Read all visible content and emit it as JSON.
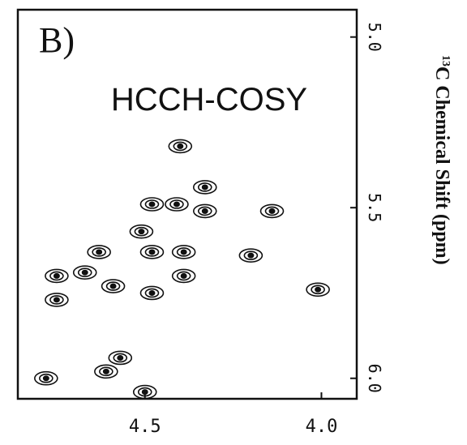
{
  "chart_data": {
    "type": "scatter",
    "panel_label": "B)",
    "title": "HCCH-COSY",
    "y_label_sup": "13",
    "y_label": "C Chemical Shift  (ppm)",
    "x": [
      4.4,
      4.33,
      4.48,
      4.41,
      4.33,
      4.14,
      4.51,
      4.48,
      4.39,
      4.63,
      4.2,
      4.39,
      4.67,
      4.59,
      4.75,
      4.48,
      4.01,
      4.75,
      4.57,
      4.61,
      4.78,
      4.5
    ],
    "values": [
      5.32,
      5.44,
      5.49,
      5.49,
      5.51,
      5.51,
      5.57,
      5.63,
      5.63,
      5.63,
      5.64,
      5.7,
      5.69,
      5.73,
      5.7,
      5.75,
      5.74,
      5.77,
      5.94,
      5.98,
      6.0,
      6.04
    ],
    "color": "#111111",
    "xlim": [
      4.86,
      3.9
    ],
    "xticks": [
      4.5,
      {
        "value": 4,
        "label": "4.0"
      }
    ],
    "ylim": [
      4.92,
      6.06
    ],
    "yticks": [
      {
        "value": 5,
        "label": "5.0"
      },
      5.5,
      {
        "value": 6,
        "label": "6.0"
      }
    ]
  }
}
